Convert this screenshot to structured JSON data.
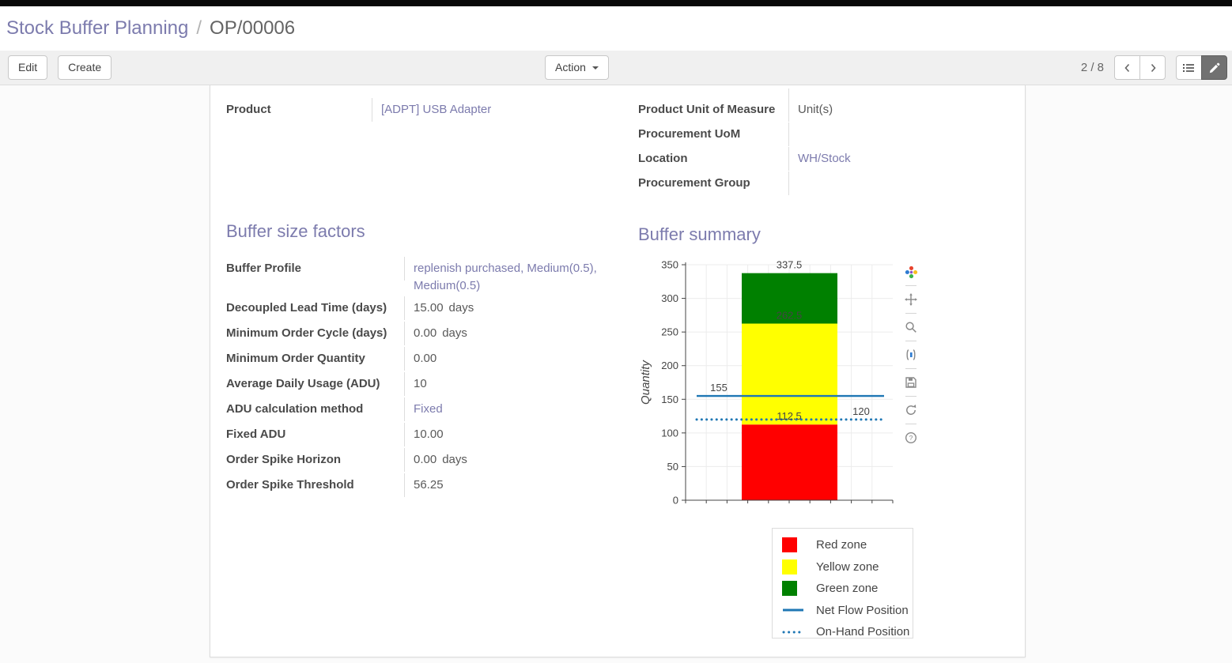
{
  "breadcrumb": {
    "parent": "Stock Buffer Planning",
    "separator": "/",
    "current": "OP/00006"
  },
  "toolbar": {
    "edit_label": "Edit",
    "create_label": "Create",
    "action_label": "Action",
    "pager": "2 / 8"
  },
  "colors": {
    "accent": "#7c7bad",
    "link": "#7c7bad"
  },
  "form": {
    "left_fields": [
      {
        "label": "Product",
        "value": "[ADPT] USB Adapter",
        "link": true,
        "suffix": ""
      }
    ],
    "right_fields": [
      {
        "label": "Product Unit of Measure",
        "value": "Unit(s)",
        "link": false,
        "suffix": ""
      },
      {
        "label": "Procurement UoM",
        "value": "",
        "link": false,
        "suffix": ""
      },
      {
        "label": "Location",
        "value": "WH/Stock",
        "link": true,
        "suffix": ""
      },
      {
        "label": "Procurement Group",
        "value": "",
        "link": false,
        "suffix": ""
      }
    ],
    "left_section_title": "Buffer size factors",
    "right_section_title": "Buffer summary",
    "buffer_fields": [
      {
        "label": "Buffer Profile",
        "value": "replenish purchased, Medium(0.5), Medium(0.5)",
        "link": true,
        "suffix": ""
      },
      {
        "label": "Decoupled Lead Time (days)",
        "value": "15.00",
        "link": false,
        "suffix": "days"
      },
      {
        "label": "Minimum Order Cycle (days)",
        "value": "0.00",
        "link": false,
        "suffix": "days"
      },
      {
        "label": "Minimum Order Quantity",
        "value": "0.00",
        "link": false,
        "suffix": ""
      },
      {
        "label": "Average Daily Usage (ADU)",
        "value": "10",
        "link": false,
        "suffix": ""
      },
      {
        "label": "ADU calculation method",
        "value": "Fixed",
        "link": true,
        "suffix": ""
      },
      {
        "label": "Fixed ADU",
        "value": "10.00",
        "link": false,
        "suffix": ""
      },
      {
        "label": "Order Spike Horizon",
        "value": "0.00",
        "link": false,
        "suffix": "days"
      },
      {
        "label": "Order Spike Threshold",
        "value": "56.25",
        "link": false,
        "suffix": ""
      }
    ]
  },
  "chart_data": {
    "type": "bar",
    "title": "",
    "xlabel": "",
    "ylabel": "Quantity",
    "ylim": [
      0,
      350
    ],
    "yticks": [
      0,
      50,
      100,
      150,
      200,
      250,
      300,
      350
    ],
    "grid": true,
    "legend_position": "bottom-right",
    "series": [
      {
        "name": "Red zone",
        "type": "bar",
        "from": 0,
        "to": 112.5,
        "color": "#ff0000"
      },
      {
        "name": "Yellow zone",
        "type": "bar",
        "from": 112.5,
        "to": 262.5,
        "color": "#ffff00"
      },
      {
        "name": "Green zone",
        "type": "bar",
        "from": 262.5,
        "to": 337.5,
        "color": "#008000"
      },
      {
        "name": "Net Flow Position",
        "type": "line",
        "value": 155,
        "style": "solid",
        "color": "#1f77b4"
      },
      {
        "name": "On-Hand Position",
        "type": "line",
        "value": 120,
        "style": "dotted",
        "color": "#1f77b4"
      }
    ],
    "annotations": [
      {
        "text": "337.5",
        "value": 337.5,
        "anchor": "bar-top"
      },
      {
        "text": "262.5",
        "value": 262.5,
        "anchor": "bar-top"
      },
      {
        "text": "155",
        "value": 155,
        "anchor": "left"
      },
      {
        "text": "112.5",
        "value": 112.5,
        "anchor": "bar-top"
      },
      {
        "text": "120",
        "value": 120,
        "anchor": "right"
      }
    ],
    "legend": [
      {
        "label": "Red zone",
        "swatch": "square",
        "color": "#ff0000"
      },
      {
        "label": "Yellow zone",
        "swatch": "square",
        "color": "#ffff00"
      },
      {
        "label": "Green zone",
        "swatch": "square",
        "color": "#008000"
      },
      {
        "label": "Net Flow Position",
        "swatch": "line",
        "color": "#1f77b4"
      },
      {
        "label": "On-Hand Position",
        "swatch": "dotted-line",
        "color": "#1f77b4"
      }
    ],
    "modebar_icons": [
      "plotly-logo-icon",
      "pan-icon",
      "zoom-icon",
      "autoscale-icon",
      "save-icon",
      "reset-icon",
      "help-icon"
    ]
  }
}
